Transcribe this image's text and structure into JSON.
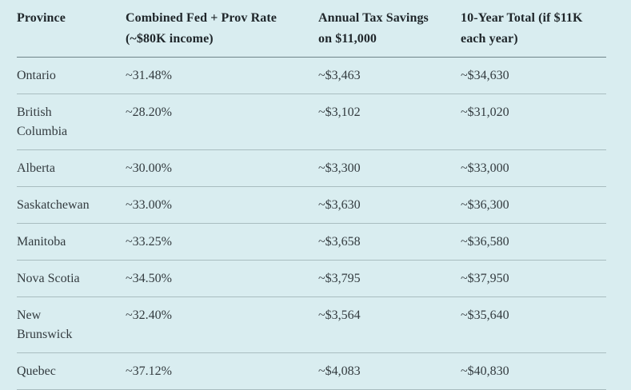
{
  "colors": {
    "background": "#d9edf0",
    "text": "#333b3f",
    "header_text": "#20272b",
    "header_rule": "#6f8489",
    "row_rule": "#a9bdc0"
  },
  "table": {
    "headers": [
      {
        "label": "Province"
      },
      {
        "label": "Combined Fed + Prov Rate\n(~$80K income)"
      },
      {
        "label": "Annual Tax Savings\non $11,000"
      },
      {
        "label": "10-Year Total (if $11K\neach year)"
      }
    ],
    "rows": [
      {
        "province": "Ontario",
        "rate": "~31.48%",
        "annual_savings": "~$3,463",
        "ten_year_total": "~$34,630"
      },
      {
        "province": "British Columbia",
        "rate": "~28.20%",
        "annual_savings": "~$3,102",
        "ten_year_total": "~$31,020"
      },
      {
        "province": "Alberta",
        "rate": "~30.00%",
        "annual_savings": "~$3,300",
        "ten_year_total": "~$33,000"
      },
      {
        "province": "Saskatchewan",
        "rate": "~33.00%",
        "annual_savings": "~$3,630",
        "ten_year_total": "~$36,300"
      },
      {
        "province": "Manitoba",
        "rate": "~33.25%",
        "annual_savings": "~$3,658",
        "ten_year_total": "~$36,580"
      },
      {
        "province": "Nova Scotia",
        "rate": "~34.50%",
        "annual_savings": "~$3,795",
        "ten_year_total": "~$37,950"
      },
      {
        "province": "New Brunswick",
        "rate": "~32.40%",
        "annual_savings": "~$3,564",
        "ten_year_total": "~$35,640"
      },
      {
        "province": "Quebec",
        "rate": "~37.12%",
        "annual_savings": "~$4,083",
        "ten_year_total": "~$40,830"
      }
    ]
  },
  "chart_data": {
    "type": "table",
    "title": "",
    "columns": [
      "Province",
      "Combined Fed + Prov Rate (~$80K income)",
      "Annual Tax Savings on $11,000",
      "10-Year Total (if $11K each year)"
    ],
    "rows": [
      [
        "Ontario",
        "~31.48%",
        "~$3,463",
        "~$34,630"
      ],
      [
        "British Columbia",
        "~28.20%",
        "~$3,102",
        "~$31,020"
      ],
      [
        "Alberta",
        "~30.00%",
        "~$3,300",
        "~$33,000"
      ],
      [
        "Saskatchewan",
        "~33.00%",
        "~$3,630",
        "~$36,300"
      ],
      [
        "Manitoba",
        "~33.25%",
        "~$3,658",
        "~$36,580"
      ],
      [
        "Nova Scotia",
        "~34.50%",
        "~$3,795",
        "~$37,950"
      ],
      [
        "New Brunswick",
        "~32.40%",
        "~$3,564",
        "~$35,640"
      ],
      [
        "Quebec",
        "~37.12%",
        "~$4,083",
        "~$40,830"
      ]
    ],
    "rates_percent": [
      31.48,
      28.2,
      30.0,
      33.0,
      33.25,
      34.5,
      32.4,
      37.12
    ],
    "annual_savings_usd": [
      3463,
      3102,
      3300,
      3630,
      3658,
      3795,
      3564,
      4083
    ],
    "ten_year_total_usd": [
      34630,
      31020,
      33000,
      36300,
      36580,
      37950,
      35640,
      40830
    ]
  }
}
